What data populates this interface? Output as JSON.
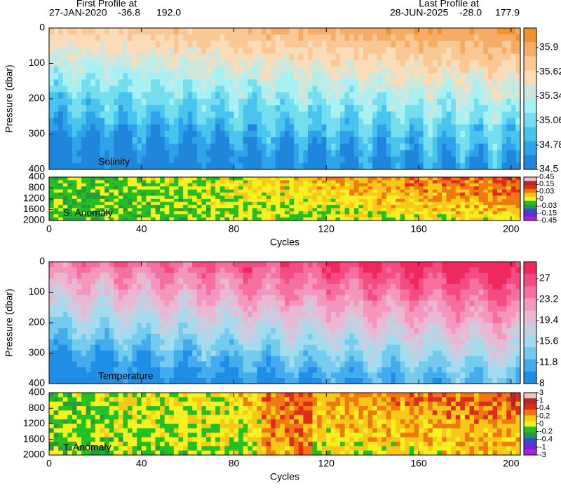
{
  "header": {
    "first_label": "First Profile at",
    "first_date": "27-JAN-2020",
    "first_lat": "-36.8",
    "first_lon": "192.0",
    "last_label": "Last Profile at",
    "last_date": "28-JUN-2025",
    "last_lat": "-28.0",
    "last_lon": "177.9"
  },
  "chart_data": [
    {
      "type": "heatmap",
      "label": "Solinity",
      "ylabel": "Pressure (dbar)",
      "ylim": [
        0,
        400
      ],
      "yticks": [
        0,
        100,
        200,
        300,
        400
      ],
      "colorbar": {
        "levels": [
          35.9,
          35.62,
          35.34,
          35.06,
          34.78,
          34.5
        ],
        "colors": [
          "#f0922e",
          "#f5ad66",
          "#f9c894",
          "#fbdcb8",
          "#cfe7da",
          "#a9f0f2",
          "#74deee",
          "#48c4ee",
          "#2da3e9",
          "#1f86dc"
        ]
      }
    },
    {
      "type": "heatmap",
      "label": "S. Anomaly",
      "xlabel": "Cycles",
      "xlim": [
        0,
        204
      ],
      "xticks": [
        0,
        40,
        80,
        120,
        160,
        200
      ],
      "ylim": [
        400,
        2000
      ],
      "yticks": [
        400,
        800,
        1200,
        1600,
        2000
      ],
      "colorbar": {
        "levels": [
          0.45,
          0.15,
          0.03,
          0,
          -0.03,
          -0.15,
          -0.45
        ],
        "colors": [
          "#e8c4c4",
          "#b02828",
          "#e02c1c",
          "#f07810",
          "#f8c818",
          "#f5f020",
          "#22c022",
          "#2a9a40",
          "#3050c8",
          "#6a2cc8",
          "#a820e0"
        ]
      }
    },
    {
      "type": "heatmap",
      "label": "Temperature",
      "ylabel": "Pressure (dbar)",
      "ylim": [
        0,
        400
      ],
      "yticks": [
        0,
        100,
        200,
        300,
        400
      ],
      "colorbar": {
        "levels": [
          27,
          23.2,
          19.4,
          15.6,
          11.8,
          8
        ],
        "colors": [
          "#f0285e",
          "#f24c82",
          "#f570a0",
          "#f596bc",
          "#eab8d0",
          "#c8cde0",
          "#a4dbee",
          "#74cbee",
          "#44acec",
          "#1f8fe6"
        ]
      }
    },
    {
      "type": "heatmap",
      "label": "T. Anomaly",
      "xlabel": "Cycles",
      "xlim": [
        0,
        204
      ],
      "xticks": [
        0,
        40,
        80,
        120,
        160,
        200
      ],
      "ylim": [
        400,
        2000
      ],
      "yticks": [
        400,
        800,
        1200,
        1600,
        2000
      ],
      "colorbar": {
        "levels": [
          3,
          1,
          0.4,
          0.2,
          0,
          -0.2,
          -0.4,
          -1,
          -3
        ],
        "colors": [
          "#e8c4c4",
          "#b02828",
          "#e02c1c",
          "#f07810",
          "#f8c818",
          "#f5f020",
          "#22c022",
          "#2a9a40",
          "#3050c8",
          "#6a2cc8",
          "#a820e0"
        ]
      }
    }
  ]
}
